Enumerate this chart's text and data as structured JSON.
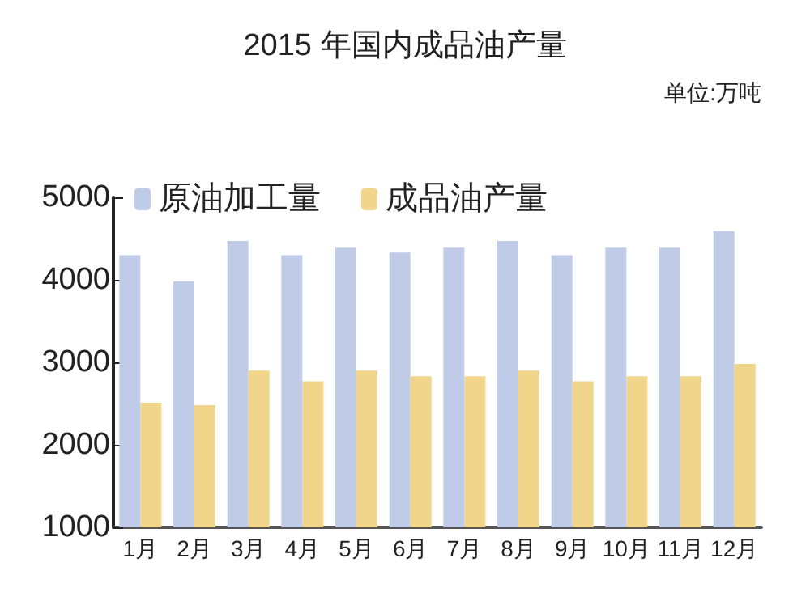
{
  "chart_data": {
    "type": "bar",
    "title": "2015 年国内成品油产量",
    "annotations": [
      "单位:万吨"
    ],
    "categories": [
      "1月",
      "2月",
      "3月",
      "4月",
      "5月",
      "6月",
      "7月",
      "8月",
      "9月",
      "10月",
      "11月",
      "12月"
    ],
    "series": [
      {
        "name": "原油加工量",
        "color": "#c0cbe8",
        "values": [
          4300,
          3980,
          4470,
          4300,
          4390,
          4330,
          4390,
          4470,
          4300,
          4390,
          4390,
          4590
        ]
      },
      {
        "name": "成品油产量",
        "color": "#f0d58a",
        "values": [
          2510,
          2480,
          2900,
          2770,
          2900,
          2830,
          2830,
          2900,
          2770,
          2830,
          2830,
          2980
        ]
      }
    ],
    "ylim": [
      1000,
      5000
    ],
    "yticks": [
      1000,
      2000,
      3000,
      4000,
      5000
    ],
    "grid": false,
    "legend": "top left"
  }
}
